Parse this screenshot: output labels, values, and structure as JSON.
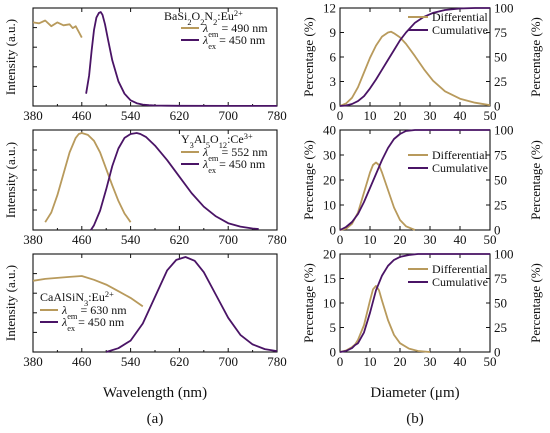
{
  "figure": {
    "caption_a": "(a)",
    "caption_b": "(b)",
    "xlabel_a": "Wavelength (nm)",
    "xlabel_b": "Diameter (μm)"
  },
  "colors": {
    "em": "#b89a5c",
    "ex": "#4a1466",
    "axis": "#111111"
  },
  "chart_data": [
    {
      "type": "line",
      "panel": "a-top",
      "ylabel": "Intensity (a.u.)",
      "xlim": [
        380,
        780
      ],
      "xticks": [
        380,
        460,
        540,
        620,
        700,
        780
      ],
      "grid": false,
      "legend_title_html": "BaSi<tspan baseline-shift='sub' font-size='70%'>2</tspan>O<tspan baseline-shift='sub' font-size='70%'>2</tspan>N<tspan baseline-shift='sub' font-size='70%'>2</tspan>:Eu<tspan baseline-shift='super' font-size='70%'>2+</tspan>",
      "legend_title_text": "BaSi2O2N2:Eu2+",
      "series": [
        {
          "name": "λem = 490 nm",
          "role": "em",
          "x": [
            380,
            390,
            400,
            410,
            420,
            430,
            440,
            445,
            450,
            455,
            460
          ],
          "y": [
            0.88,
            0.87,
            0.9,
            0.84,
            0.88,
            0.85,
            0.86,
            0.82,
            0.84,
            0.78,
            0.72
          ]
        },
        {
          "name": "λex = 450 nm",
          "role": "ex",
          "x": [
            467,
            472,
            476,
            480,
            484,
            488,
            491,
            494,
            498,
            503,
            510,
            520,
            530,
            540,
            550,
            560,
            570,
            580,
            600,
            620,
            700,
            780
          ],
          "y": [
            0.13,
            0.32,
            0.58,
            0.8,
            0.93,
            0.98,
            0.99,
            0.96,
            0.86,
            0.7,
            0.48,
            0.26,
            0.13,
            0.06,
            0.03,
            0.015,
            0.008,
            0.005,
            0.003,
            0.002,
            0.001,
            0.001
          ]
        }
      ]
    },
    {
      "type": "line",
      "panel": "a-mid",
      "ylabel": "Intensity (a.u.)",
      "xlim": [
        380,
        780
      ],
      "xticks": [
        380,
        460,
        540,
        620,
        700,
        780
      ],
      "grid": false,
      "legend_title_html": "Y<tspan baseline-shift='sub' font-size='70%'>3</tspan>Al<tspan baseline-shift='sub' font-size='70%'>5</tspan>O<tspan baseline-shift='sub' font-size='70%'>12</tspan>:Ce<tspan baseline-shift='super' font-size='70%'>3+</tspan>",
      "legend_title_text": "Y3Al5O12:Ce3+",
      "series": [
        {
          "name": "λem = 552 nm",
          "role": "em",
          "x": [
            400,
            410,
            420,
            430,
            440,
            450,
            455,
            460,
            470,
            480,
            490,
            500,
            510,
            520,
            530,
            540
          ],
          "y": [
            0.08,
            0.18,
            0.36,
            0.58,
            0.8,
            0.95,
            0.99,
            1.0,
            0.98,
            0.92,
            0.8,
            0.63,
            0.46,
            0.3,
            0.17,
            0.08
          ]
        },
        {
          "name": "λex = 450 nm",
          "role": "ex",
          "x": [
            475,
            480,
            490,
            500,
            510,
            520,
            530,
            540,
            550,
            556,
            565,
            580,
            600,
            620,
            640,
            660,
            680,
            700,
            720,
            740,
            750
          ],
          "y": [
            0.0,
            0.05,
            0.2,
            0.42,
            0.66,
            0.84,
            0.95,
            0.99,
            1.0,
            0.99,
            0.96,
            0.87,
            0.72,
            0.55,
            0.38,
            0.24,
            0.14,
            0.07,
            0.035,
            0.015,
            0.01
          ]
        }
      ]
    },
    {
      "type": "line",
      "panel": "a-bot",
      "ylabel": "Intensity (a.u.)",
      "xlim": [
        380,
        780
      ],
      "xticks": [
        380,
        460,
        540,
        620,
        700,
        780
      ],
      "grid": false,
      "legend_title_html": "CaAlSiN<tspan baseline-shift='sub' font-size='70%'>3</tspan>:Eu<tspan baseline-shift='super' font-size='70%'>2+</tspan>",
      "legend_title_text": "CaAlSiN3:Eu2+",
      "series": [
        {
          "name": "λem = 630 nm",
          "role": "em",
          "x": [
            380,
            400,
            420,
            440,
            460,
            480,
            500,
            520,
            540,
            560
          ],
          "y": [
            0.75,
            0.77,
            0.78,
            0.79,
            0.8,
            0.76,
            0.71,
            0.64,
            0.57,
            0.48
          ]
        },
        {
          "name": "λex = 450 nm",
          "role": "ex",
          "x": [
            500,
            520,
            540,
            560,
            580,
            600,
            615,
            630,
            645,
            660,
            680,
            700,
            720,
            740,
            760,
            780
          ],
          "y": [
            0.0,
            0.04,
            0.12,
            0.3,
            0.58,
            0.86,
            0.97,
            1.0,
            0.96,
            0.84,
            0.6,
            0.36,
            0.18,
            0.08,
            0.03,
            0.01
          ]
        }
      ]
    },
    {
      "type": "line",
      "panel": "b-top",
      "ylabel": "Percentage (%)",
      "y2label": "Percentage (%)",
      "xlim": [
        0,
        50
      ],
      "xticks": [
        0,
        10,
        20,
        30,
        40,
        50
      ],
      "ylim": [
        0,
        12
      ],
      "yticks": [
        0,
        3,
        6,
        9,
        12
      ],
      "y2lim": [
        0,
        100
      ],
      "y2ticks": [
        0,
        25,
        50,
        75,
        100
      ],
      "grid": false,
      "series": [
        {
          "name": "Differential",
          "role": "em",
          "axis": "left",
          "x": [
            0,
            2,
            4,
            6,
            8,
            10,
            12,
            14,
            16,
            17,
            18,
            20,
            22,
            25,
            28,
            31,
            35,
            40,
            45,
            50
          ],
          "y": [
            0,
            0.3,
            1.0,
            2.3,
            4.1,
            5.9,
            7.4,
            8.5,
            9.0,
            9.1,
            8.9,
            8.4,
            7.6,
            6.1,
            4.5,
            3.1,
            1.8,
            0.9,
            0.4,
            0.1
          ]
        },
        {
          "name": "Cumulative",
          "role": "ex",
          "axis": "right",
          "x": [
            0,
            2,
            4,
            6,
            8,
            10,
            12,
            14,
            16,
            18,
            20,
            22,
            25,
            28,
            31,
            35,
            40,
            45,
            50
          ],
          "y": [
            0,
            0.5,
            2,
            5,
            10,
            18,
            27,
            37,
            47,
            57,
            67,
            75,
            85,
            91,
            95,
            98,
            99.5,
            100,
            100
          ]
        }
      ]
    },
    {
      "type": "line",
      "panel": "b-mid",
      "ylabel": "Percentage (%)",
      "y2label": "Percentage (%)",
      "xlim": [
        0,
        50
      ],
      "xticks": [
        0,
        10,
        20,
        30,
        40,
        50
      ],
      "ylim": [
        0,
        40
      ],
      "yticks": [
        0,
        10,
        20,
        30,
        40
      ],
      "y2lim": [
        0,
        100
      ],
      "y2ticks": [
        0,
        25,
        50,
        75,
        100
      ],
      "grid": false,
      "series": [
        {
          "name": "Differential",
          "role": "em",
          "axis": "left",
          "x": [
            0,
            2,
            4,
            6,
            8,
            10,
            11,
            12,
            13,
            14,
            16,
            18,
            20,
            22,
            25
          ],
          "y": [
            0,
            0.5,
            2.5,
            7,
            15,
            23,
            26,
            27,
            26,
            23,
            16,
            9,
            4,
            1.5,
            0
          ]
        },
        {
          "name": "Cumulative",
          "role": "ex",
          "axis": "right",
          "x": [
            0,
            2,
            4,
            6,
            8,
            10,
            12,
            14,
            16,
            18,
            20,
            22,
            25,
            28,
            50
          ],
          "y": [
            0,
            3,
            8,
            16,
            28,
            42,
            56,
            70,
            82,
            91,
            96,
            99,
            100,
            100,
            100
          ]
        }
      ]
    },
    {
      "type": "line",
      "panel": "b-bot",
      "ylabel": "Percentage (%)",
      "y2label": "Percentage (%)",
      "xlim": [
        0,
        50
      ],
      "xticks": [
        0,
        10,
        20,
        30,
        40,
        50
      ],
      "ylim": [
        0,
        20
      ],
      "yticks": [
        0,
        5,
        10,
        15,
        20
      ],
      "y2lim": [
        0,
        100
      ],
      "y2ticks": [
        0,
        25,
        50,
        75,
        100
      ],
      "grid": false,
      "series": [
        {
          "name": "Differential",
          "role": "em",
          "axis": "left",
          "x": [
            0,
            2,
            4,
            5,
            6,
            8,
            10,
            11,
            12,
            13,
            14,
            16,
            18,
            20,
            23,
            26,
            30
          ],
          "y": [
            0,
            0.3,
            1.0,
            1.5,
            2.5,
            5.5,
            10.5,
            12.8,
            13.5,
            12.6,
            10.5,
            6.5,
            3.5,
            1.8,
            0.7,
            0.2,
            0
          ]
        },
        {
          "name": "Cumulative",
          "role": "ex",
          "axis": "right",
          "x": [
            0,
            2,
            4,
            5,
            6,
            8,
            10,
            12,
            14,
            16,
            18,
            20,
            23,
            26,
            30,
            35,
            50
          ],
          "y": [
            0,
            1,
            4,
            7,
            9,
            20,
            40,
            63,
            78,
            88,
            94,
            97,
            99,
            100,
            100,
            100,
            100
          ]
        }
      ]
    }
  ]
}
